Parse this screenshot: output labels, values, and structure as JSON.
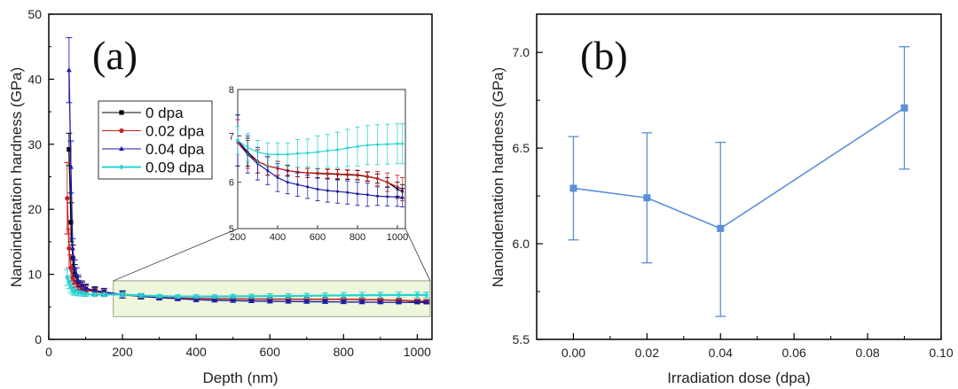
{
  "chart_data": [
    {
      "id": "a",
      "type": "line",
      "panel_label": "(a)",
      "xlabel": "Depth (nm)",
      "ylabel": "Nanoindentation hardness (GPa)",
      "xlim": [
        0,
        1040
      ],
      "ylim": [
        0,
        50
      ],
      "xticks": [
        0,
        200,
        400,
        600,
        800,
        1000
      ],
      "yticks": [
        0,
        10,
        20,
        30,
        40,
        50
      ],
      "grid": false,
      "legend_position": "upper-left-center",
      "highlight_region": {
        "x": [
          175,
          1035
        ],
        "y": [
          3.5,
          9
        ]
      },
      "series": [
        {
          "name": "0 dpa",
          "color": "#000000",
          "marker": "square",
          "x": [
            55,
            60,
            65,
            70,
            80,
            90,
            100,
            125,
            150,
            200,
            250,
            300,
            350,
            400,
            450,
            500,
            550,
            600,
            650,
            700,
            750,
            800,
            850,
            900,
            950,
            1000,
            1025
          ],
          "y": [
            29.2,
            18,
            12.5,
            10,
            8.6,
            8.0,
            7.7,
            7.4,
            7.2,
            6.9,
            6.65,
            6.45,
            6.35,
            6.3,
            6.25,
            6.22,
            6.2,
            6.19,
            6.18,
            6.17,
            6.16,
            6.15,
            6.12,
            6.08,
            6.0,
            5.85,
            5.8
          ],
          "err": [
            2.5,
            3,
            2,
            1.5,
            1.0,
            0.8,
            0.7,
            0.6,
            0.6,
            0.55,
            0.3,
            0.25,
            0.2,
            0.15,
            0.12,
            0.1,
            0.1,
            0.1,
            0.1,
            0.1,
            0.1,
            0.1,
            0.1,
            0.1,
            0.1,
            0.15,
            0.15
          ]
        },
        {
          "name": "0.02 dpa",
          "color": "#cc1f1f",
          "marker": "circle",
          "x": [
            50,
            55,
            60,
            65,
            70,
            80,
            90,
            100,
            125,
            150,
            200,
            250,
            300,
            350,
            400,
            450,
            500,
            550,
            600,
            650,
            700,
            750,
            800,
            850,
            900,
            950,
            1000,
            1025
          ],
          "y": [
            21.7,
            14,
            11,
            9.5,
            8.8,
            8.2,
            7.8,
            7.6,
            7.3,
            7.1,
            6.85,
            6.6,
            6.45,
            6.35,
            6.3,
            6.25,
            6.22,
            6.2,
            6.2,
            6.19,
            6.18,
            6.17,
            6.16,
            6.13,
            6.08,
            6.0,
            5.9,
            5.85
          ],
          "err": [
            5.5,
            3,
            2,
            1.5,
            1.2,
            0.9,
            0.7,
            0.6,
            0.55,
            0.5,
            0.5,
            0.3,
            0.25,
            0.2,
            0.15,
            0.1,
            0.1,
            0.1,
            0.1,
            0.1,
            0.1,
            0.1,
            0.1,
            0.1,
            0.15,
            0.2,
            0.25,
            0.25
          ]
        },
        {
          "name": "0.04 dpa",
          "color": "#1a1aa6",
          "marker": "triangle",
          "x": [
            55,
            60,
            65,
            70,
            75,
            80,
            90,
            100,
            125,
            150,
            200,
            250,
            300,
            350,
            400,
            450,
            500,
            550,
            600,
            650,
            700,
            750,
            800,
            850,
            900,
            950,
            1000,
            1025
          ],
          "y": [
            41.4,
            26.5,
            14,
            11,
            10,
            9,
            8.3,
            7.9,
            7.5,
            7.3,
            6.9,
            6.6,
            6.4,
            6.25,
            6.1,
            6.0,
            5.95,
            5.9,
            5.85,
            5.82,
            5.8,
            5.78,
            5.75,
            5.73,
            5.7,
            5.69,
            5.68,
            5.67
          ],
          "err": [
            5,
            4,
            1.5,
            1.2,
            1.0,
            0.9,
            0.7,
            0.6,
            0.6,
            0.55,
            0.55,
            0.4,
            0.35,
            0.3,
            0.3,
            0.25,
            0.25,
            0.25,
            0.25,
            0.25,
            0.25,
            0.25,
            0.25,
            0.25,
            0.2,
            0.2,
            0.2,
            0.2
          ]
        },
        {
          "name": "0.09 dpa",
          "color": "#27d3d3",
          "marker": "diamond",
          "x": [
            50,
            55,
            60,
            65,
            70,
            80,
            90,
            100,
            125,
            150,
            200,
            250,
            300,
            350,
            400,
            450,
            500,
            550,
            600,
            650,
            700,
            750,
            800,
            850,
            900,
            950,
            1000,
            1025
          ],
          "y": [
            9.5,
            8.8,
            8.0,
            7.5,
            7.3,
            7.1,
            7.0,
            6.9,
            6.9,
            6.9,
            6.9,
            6.75,
            6.65,
            6.6,
            6.6,
            6.6,
            6.62,
            6.63,
            6.65,
            6.68,
            6.7,
            6.74,
            6.77,
            6.8,
            6.81,
            6.82,
            6.83,
            6.83
          ],
          "err": [
            1.2,
            1.0,
            0.8,
            0.6,
            0.5,
            0.4,
            0.35,
            0.3,
            0.3,
            0.3,
            0.3,
            0.3,
            0.25,
            0.25,
            0.25,
            0.25,
            0.3,
            0.3,
            0.35,
            0.35,
            0.38,
            0.4,
            0.42,
            0.42,
            0.43,
            0.43,
            0.43,
            0.43
          ]
        }
      ],
      "inset": {
        "xlim": [
          200,
          1040
        ],
        "ylim": [
          5,
          8
        ],
        "xticks": [
          200,
          400,
          600,
          800,
          1000
        ],
        "yticks": [
          5,
          6,
          7,
          8
        ]
      }
    },
    {
      "id": "b",
      "type": "line",
      "panel_label": "(b)",
      "xlabel": "Irradiation dose (dpa)",
      "ylabel": "Nanoindentation hardness (GPa)",
      "xlim": [
        -0.01,
        0.1
      ],
      "ylim": [
        5.5,
        7.2
      ],
      "xticks": [
        "0.00",
        "0.02",
        "0.04",
        "0.06",
        "0.08",
        "0.10"
      ],
      "yticks": [
        "5.5",
        "6.0",
        "6.5",
        "7.0"
      ],
      "grid": false,
      "color": "#5b8fd6",
      "marker": "square",
      "x": [
        0.0,
        0.02,
        0.04,
        0.09
      ],
      "y": [
        6.29,
        6.24,
        6.08,
        6.71
      ],
      "err_low": [
        6.02,
        5.9,
        5.62,
        6.39
      ],
      "err_high": [
        6.56,
        6.58,
        6.53,
        7.03
      ]
    }
  ]
}
